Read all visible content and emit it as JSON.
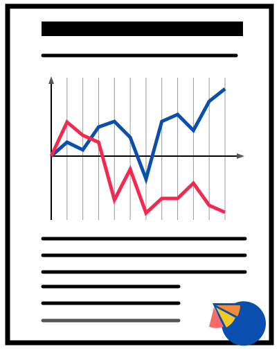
{
  "chart_data": {
    "type": "line",
    "categories": [
      null,
      null,
      null,
      null,
      null,
      null,
      null,
      null,
      null,
      null,
      null,
      null
    ],
    "series": [
      {
        "color": "#0a4fb0",
        "values": [
          0,
          2,
          0.9,
          4.2,
          5,
          2.7,
          -3.3,
          5,
          6,
          3.7,
          7.9,
          9.7
        ]
      },
      {
        "color": "#f5284f",
        "values": [
          0,
          4.9,
          3,
          2,
          -6.3,
          -1.9,
          -8.2,
          -6.1,
          -6.1,
          -3.9,
          -7.1,
          -8.1
        ]
      }
    ],
    "ylim": [
      -9.2,
      11.3
    ]
  }
}
